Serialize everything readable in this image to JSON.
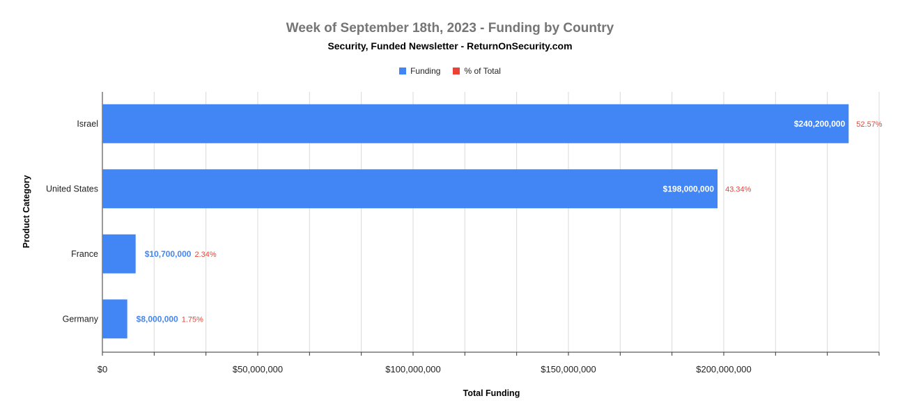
{
  "chart_data": {
    "type": "bar",
    "orientation": "horizontal",
    "title": "Week of September 18th, 2023 - Funding by Country",
    "subtitle": "Security, Funded Newsletter - ReturnOnSecurity.com",
    "xlabel": "Total Funding",
    "ylabel": "Product Category",
    "categories": [
      "Israel",
      "United States",
      "France",
      "Germany"
    ],
    "series": [
      {
        "name": "Funding",
        "values": [
          240200000,
          198000000,
          10700000,
          8000000
        ],
        "labels": [
          "$240,200,000",
          "$198,000,000",
          "$10,700,000",
          "$8,000,000"
        ],
        "color": "#4285f4"
      },
      {
        "name": "% of Total",
        "values": [
          52.57,
          43.34,
          2.34,
          1.75
        ],
        "labels": [
          "52.57%",
          "43.34%",
          "2.34%",
          "1.75%"
        ],
        "color": "#ea4335"
      }
    ],
    "xlim": [
      0,
      250000000
    ],
    "x_ticks": [
      0,
      50000000,
      100000000,
      150000000,
      200000000
    ],
    "x_tick_labels": [
      "$0",
      "$50,000,000",
      "$100,000,000",
      "$150,000,000",
      "$200,000,000"
    ],
    "grid": true,
    "legend_position": "top-center"
  }
}
